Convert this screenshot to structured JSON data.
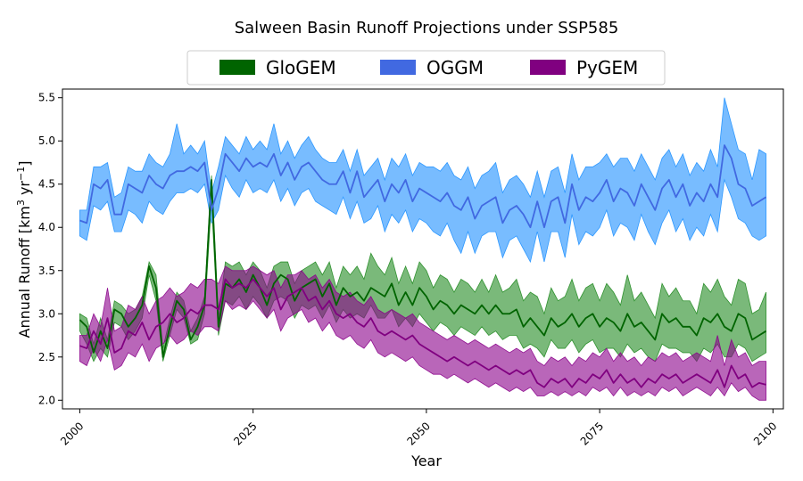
{
  "chart_data": {
    "type": "area",
    "title": "Salween Basin Runoff Projections under SSP585",
    "xlabel": "Year",
    "ylabel": "Annual Runoff [km3 yr-1]",
    "ylabel_parts": {
      "pre": "Annual Runoff [km",
      "sup1": "3",
      "mid": " yr",
      "sup2": "−1",
      "post": "]"
    },
    "xlim": [
      1997.5,
      2101.5
    ],
    "ylim": [
      1.9,
      5.6
    ],
    "xticks": [
      2000,
      2025,
      2050,
      2075,
      2100
    ],
    "xtick_labels": [
      "2000",
      "2025",
      "2050",
      "2075",
      "2100"
    ],
    "yticks": [
      2.0,
      2.5,
      3.0,
      3.5,
      4.0,
      4.5,
      5.0,
      5.5
    ],
    "ytick_labels": [
      "2.0",
      "2.5",
      "3.0",
      "3.5",
      "4.0",
      "4.5",
      "5.0",
      "5.5"
    ],
    "legend_position": "top-center",
    "grid": false,
    "x_start": 2000,
    "x_end": 2099,
    "series": [
      {
        "name": "GloGEM",
        "line_color": "#006400",
        "fill_color": "#228B22",
        "fill_opacity": 0.6,
        "legend_color": "#006400",
        "mean": [
          2.93,
          2.85,
          2.55,
          2.8,
          2.6,
          3.05,
          3.0,
          2.85,
          2.95,
          3.1,
          3.55,
          3.3,
          2.5,
          2.85,
          3.15,
          3.05,
          2.7,
          2.85,
          3.1,
          4.55,
          2.85,
          3.35,
          3.3,
          3.4,
          3.25,
          3.45,
          3.3,
          3.1,
          3.35,
          3.45,
          3.4,
          3.15,
          3.3,
          3.35,
          3.4,
          3.2,
          3.35,
          3.1,
          3.3,
          3.2,
          3.25,
          3.15,
          3.3,
          3.25,
          3.2,
          3.35,
          3.1,
          3.25,
          3.1,
          3.3,
          3.2,
          3.05,
          3.15,
          3.1,
          3.0,
          3.1,
          3.05,
          3.0,
          3.1,
          3.0,
          3.1,
          3.0,
          3.0,
          3.05,
          2.85,
          2.95,
          2.85,
          2.75,
          2.95,
          2.85,
          2.9,
          3.0,
          2.85,
          2.95,
          3.0,
          2.85,
          2.95,
          2.9,
          2.8,
          3.0,
          2.85,
          2.9,
          2.8,
          2.7,
          3.0,
          2.9,
          2.95,
          2.85,
          2.85,
          2.75,
          2.95,
          2.9,
          3.0,
          2.85,
          2.8,
          3.0,
          2.95,
          2.7,
          2.75,
          2.8
        ],
        "lower": [
          2.8,
          2.65,
          2.45,
          2.6,
          2.5,
          2.9,
          2.85,
          2.7,
          2.8,
          2.95,
          3.45,
          3.15,
          2.45,
          2.75,
          3.05,
          2.95,
          2.65,
          2.7,
          3.0,
          4.3,
          2.75,
          3.15,
          3.1,
          3.2,
          3.05,
          3.2,
          3.1,
          2.95,
          3.15,
          3.2,
          3.15,
          2.95,
          3.1,
          3.05,
          3.1,
          2.95,
          3.1,
          2.9,
          3.05,
          2.95,
          3.0,
          2.95,
          3.1,
          2.95,
          2.95,
          3.05,
          2.85,
          2.95,
          2.85,
          3.0,
          2.9,
          2.8,
          2.9,
          2.85,
          2.75,
          2.85,
          2.8,
          2.75,
          2.85,
          2.75,
          2.8,
          2.7,
          2.75,
          2.75,
          2.6,
          2.65,
          2.6,
          2.5,
          2.7,
          2.6,
          2.6,
          2.7,
          2.55,
          2.65,
          2.7,
          2.55,
          2.6,
          2.6,
          2.5,
          2.65,
          2.55,
          2.6,
          2.5,
          2.45,
          2.65,
          2.6,
          2.6,
          2.55,
          2.55,
          2.45,
          2.6,
          2.55,
          2.65,
          2.5,
          2.5,
          2.65,
          2.6,
          2.45,
          2.5,
          2.55
        ],
        "upper": [
          3.0,
          2.95,
          2.65,
          2.95,
          2.7,
          3.15,
          3.1,
          3.0,
          3.05,
          3.2,
          3.6,
          3.45,
          2.6,
          2.95,
          3.25,
          3.15,
          2.8,
          2.95,
          3.2,
          4.6,
          2.95,
          3.6,
          3.55,
          3.6,
          3.45,
          3.6,
          3.5,
          3.3,
          3.55,
          3.6,
          3.6,
          3.35,
          3.5,
          3.55,
          3.6,
          3.45,
          3.6,
          3.3,
          3.55,
          3.45,
          3.55,
          3.4,
          3.7,
          3.55,
          3.45,
          3.65,
          3.35,
          3.55,
          3.35,
          3.6,
          3.5,
          3.3,
          3.45,
          3.4,
          3.25,
          3.4,
          3.35,
          3.25,
          3.4,
          3.25,
          3.45,
          3.25,
          3.3,
          3.4,
          3.15,
          3.25,
          3.2,
          3.0,
          3.3,
          3.15,
          3.2,
          3.4,
          3.15,
          3.3,
          3.35,
          3.15,
          3.35,
          3.25,
          3.1,
          3.45,
          3.15,
          3.25,
          3.1,
          2.95,
          3.35,
          3.2,
          3.3,
          3.15,
          3.15,
          3.0,
          3.35,
          3.25,
          3.4,
          3.2,
          3.1,
          3.4,
          3.35,
          3.0,
          3.05,
          3.25
        ]
      },
      {
        "name": "OGGM",
        "line_color": "#4169E1",
        "fill_color": "#1E90FF",
        "fill_opacity": 0.6,
        "legend_color": "#4169E1",
        "mean": [
          4.08,
          4.05,
          4.5,
          4.45,
          4.55,
          4.15,
          4.15,
          4.5,
          4.45,
          4.4,
          4.6,
          4.5,
          4.45,
          4.6,
          4.65,
          4.65,
          4.7,
          4.65,
          4.75,
          4.2,
          4.45,
          4.85,
          4.75,
          4.65,
          4.8,
          4.7,
          4.75,
          4.7,
          4.85,
          4.6,
          4.75,
          4.55,
          4.7,
          4.75,
          4.65,
          4.55,
          4.5,
          4.5,
          4.65,
          4.4,
          4.65,
          4.35,
          4.45,
          4.55,
          4.3,
          4.5,
          4.4,
          4.55,
          4.3,
          4.45,
          4.4,
          4.35,
          4.3,
          4.4,
          4.25,
          4.2,
          4.35,
          4.1,
          4.25,
          4.3,
          4.35,
          4.05,
          4.2,
          4.25,
          4.15,
          4.0,
          4.3,
          4.0,
          4.3,
          4.35,
          4.05,
          4.5,
          4.2,
          4.35,
          4.3,
          4.4,
          4.55,
          4.3,
          4.45,
          4.4,
          4.25,
          4.5,
          4.35,
          4.2,
          4.45,
          4.55,
          4.35,
          4.5,
          4.25,
          4.4,
          4.3,
          4.5,
          4.35,
          4.95,
          4.8,
          4.5,
          4.45,
          4.25,
          4.3,
          4.35
        ],
        "lower": [
          3.9,
          3.85,
          4.25,
          4.2,
          4.3,
          3.95,
          3.95,
          4.2,
          4.15,
          4.05,
          4.3,
          4.2,
          4.15,
          4.3,
          4.4,
          4.4,
          4.45,
          4.4,
          4.5,
          4.05,
          4.2,
          4.6,
          4.45,
          4.35,
          4.55,
          4.4,
          4.45,
          4.4,
          4.55,
          4.3,
          4.45,
          4.25,
          4.4,
          4.45,
          4.3,
          4.25,
          4.2,
          4.15,
          4.35,
          4.1,
          4.3,
          4.05,
          4.1,
          4.25,
          3.95,
          4.15,
          4.05,
          4.2,
          3.95,
          4.1,
          4.05,
          3.95,
          3.9,
          4.05,
          3.85,
          3.7,
          3.95,
          3.7,
          3.9,
          3.95,
          3.95,
          3.65,
          3.85,
          3.9,
          3.75,
          3.6,
          3.95,
          3.6,
          3.95,
          3.95,
          3.65,
          4.15,
          3.8,
          3.95,
          3.9,
          4.0,
          4.2,
          3.9,
          4.05,
          4.0,
          3.85,
          4.15,
          3.95,
          3.8,
          4.05,
          4.2,
          3.95,
          4.1,
          3.85,
          4.0,
          3.9,
          4.15,
          3.95,
          4.55,
          4.35,
          4.1,
          4.05,
          3.9,
          3.85,
          3.9
        ],
        "upper": [
          4.2,
          4.2,
          4.7,
          4.7,
          4.75,
          4.35,
          4.4,
          4.7,
          4.65,
          4.65,
          4.85,
          4.75,
          4.7,
          4.85,
          5.2,
          4.85,
          4.95,
          4.85,
          5.0,
          4.4,
          4.7,
          5.05,
          4.95,
          4.85,
          5.05,
          4.9,
          5.0,
          4.9,
          5.2,
          4.85,
          5.0,
          4.8,
          4.95,
          5.05,
          4.9,
          4.8,
          4.75,
          4.75,
          4.9,
          4.65,
          4.9,
          4.6,
          4.7,
          4.8,
          4.55,
          4.8,
          4.7,
          4.85,
          4.6,
          4.75,
          4.7,
          4.7,
          4.65,
          4.75,
          4.6,
          4.55,
          4.7,
          4.45,
          4.6,
          4.65,
          4.75,
          4.4,
          4.55,
          4.6,
          4.5,
          4.35,
          4.65,
          4.35,
          4.65,
          4.7,
          4.4,
          4.85,
          4.55,
          4.7,
          4.7,
          4.75,
          4.85,
          4.7,
          4.8,
          4.8,
          4.65,
          4.85,
          4.7,
          4.55,
          4.8,
          4.9,
          4.7,
          4.85,
          4.6,
          4.75,
          4.65,
          4.9,
          4.7,
          5.5,
          5.2,
          4.9,
          4.85,
          4.55,
          4.9,
          4.85
        ]
      },
      {
        "name": "PyGEM",
        "line_color": "#800080",
        "fill_color": "#8B008B",
        "fill_opacity": 0.6,
        "legend_color": "#800080",
        "mean": [
          2.63,
          2.6,
          2.8,
          2.65,
          2.95,
          2.55,
          2.6,
          2.8,
          2.75,
          2.9,
          2.7,
          2.85,
          2.9,
          3.0,
          2.9,
          2.95,
          3.05,
          3.0,
          3.1,
          3.1,
          3.05,
          3.4,
          3.3,
          3.35,
          3.3,
          3.4,
          3.3,
          3.2,
          3.3,
          3.05,
          3.2,
          3.25,
          3.3,
          3.15,
          3.2,
          3.05,
          3.15,
          3.0,
          2.95,
          3.0,
          2.9,
          2.85,
          2.95,
          2.8,
          2.75,
          2.8,
          2.75,
          2.7,
          2.75,
          2.65,
          2.6,
          2.55,
          2.5,
          2.45,
          2.5,
          2.45,
          2.4,
          2.45,
          2.4,
          2.35,
          2.4,
          2.35,
          2.3,
          2.35,
          2.3,
          2.35,
          2.2,
          2.15,
          2.25,
          2.2,
          2.25,
          2.15,
          2.25,
          2.2,
          2.3,
          2.25,
          2.35,
          2.2,
          2.3,
          2.2,
          2.25,
          2.15,
          2.25,
          2.2,
          2.3,
          2.25,
          2.3,
          2.2,
          2.25,
          2.3,
          2.25,
          2.2,
          2.35,
          2.15,
          2.4,
          2.25,
          2.3,
          2.15,
          2.2,
          2.18
        ],
        "lower": [
          2.45,
          2.4,
          2.6,
          2.45,
          2.7,
          2.35,
          2.4,
          2.55,
          2.5,
          2.65,
          2.45,
          2.6,
          2.65,
          2.75,
          2.65,
          2.7,
          2.8,
          2.75,
          2.85,
          2.85,
          2.8,
          3.15,
          3.05,
          3.1,
          3.05,
          3.15,
          3.05,
          2.95,
          3.05,
          2.8,
          2.95,
          3.0,
          3.05,
          2.9,
          2.95,
          2.8,
          2.9,
          2.75,
          2.7,
          2.75,
          2.65,
          2.6,
          2.7,
          2.55,
          2.5,
          2.55,
          2.5,
          2.45,
          2.5,
          2.4,
          2.35,
          2.3,
          2.3,
          2.25,
          2.3,
          2.25,
          2.2,
          2.25,
          2.2,
          2.15,
          2.2,
          2.15,
          2.1,
          2.15,
          2.1,
          2.15,
          2.05,
          2.05,
          2.1,
          2.05,
          2.1,
          2.05,
          2.1,
          2.05,
          2.15,
          2.1,
          2.15,
          2.05,
          2.15,
          2.05,
          2.1,
          2.05,
          2.1,
          2.05,
          2.15,
          2.1,
          2.15,
          2.05,
          2.1,
          2.15,
          2.1,
          2.05,
          2.15,
          2.05,
          2.2,
          2.1,
          2.15,
          2.05,
          2.0,
          2.0
        ],
        "upper": [
          2.75,
          2.75,
          3.0,
          2.85,
          3.3,
          2.8,
          2.85,
          3.1,
          3.05,
          3.2,
          3.0,
          3.15,
          3.2,
          3.3,
          3.2,
          3.25,
          3.35,
          3.3,
          3.4,
          3.4,
          3.35,
          3.55,
          3.5,
          3.5,
          3.5,
          3.55,
          3.5,
          3.45,
          3.5,
          3.3,
          3.45,
          3.45,
          3.5,
          3.4,
          3.45,
          3.3,
          3.4,
          3.25,
          3.2,
          3.25,
          3.15,
          3.1,
          3.2,
          3.05,
          3.0,
          3.05,
          3.0,
          2.95,
          3.0,
          2.9,
          2.85,
          2.8,
          2.75,
          2.7,
          2.75,
          2.7,
          2.65,
          2.7,
          2.65,
          2.6,
          2.65,
          2.6,
          2.55,
          2.6,
          2.55,
          2.6,
          2.45,
          2.4,
          2.5,
          2.45,
          2.5,
          2.4,
          2.5,
          2.45,
          2.55,
          2.5,
          2.6,
          2.45,
          2.55,
          2.45,
          2.5,
          2.4,
          2.5,
          2.45,
          2.55,
          2.5,
          2.55,
          2.45,
          2.5,
          2.55,
          2.5,
          2.45,
          2.75,
          2.4,
          2.7,
          2.5,
          2.55,
          2.4,
          2.45,
          2.45
        ]
      }
    ]
  }
}
